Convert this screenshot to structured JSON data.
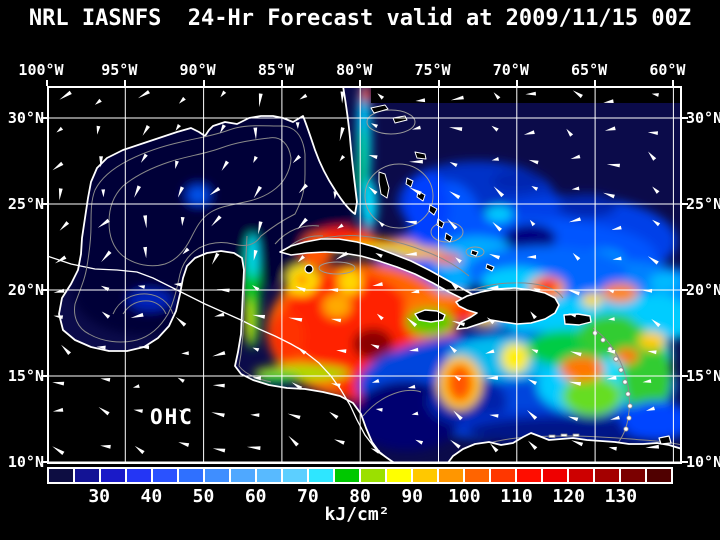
{
  "title": "NRL IASNFS  24-Hr Forecast valid at 2009/11/15 00Z",
  "map": {
    "overlay_label": "OHC",
    "longitude_labels": [
      "100°W",
      "95°W",
      "90°W",
      "85°W",
      "80°W",
      "75°W",
      "70°W",
      "65°W",
      "60°W"
    ],
    "latitude_labels": [
      "30°N",
      "25°N",
      "20°N",
      "15°N",
      "10°N"
    ]
  },
  "colorbar": {
    "unit": "kJ/cm²",
    "tick_labels": [
      "30",
      "40",
      "50",
      "60",
      "70",
      "80",
      "90",
      "100",
      "110",
      "120",
      "130"
    ],
    "cell_colors": [
      "#0d0d42",
      "#131395",
      "#1a1ac8",
      "#2436f5",
      "#2a52ff",
      "#2f70ff",
      "#3f8eff",
      "#4fa8ff",
      "#58baff",
      "#5ccfff",
      "#2ee6ff",
      "#00c800",
      "#9be000",
      "#ffff00",
      "#ffc800",
      "#ff9600",
      "#ff6400",
      "#ff3700",
      "#ff0d00",
      "#ef0000",
      "#cd0000",
      "#a40000",
      "#7b0000",
      "#500000"
    ],
    "value_min": 20,
    "value_max": 140,
    "cell_step": 5,
    "accent_colors": {
      "grid": "#ffffff",
      "coastline": "#ffffff",
      "bathymetry_contour": "#8a8a8a",
      "land": "#000000",
      "ocean_base": "#0b0b4a"
    }
  }
}
